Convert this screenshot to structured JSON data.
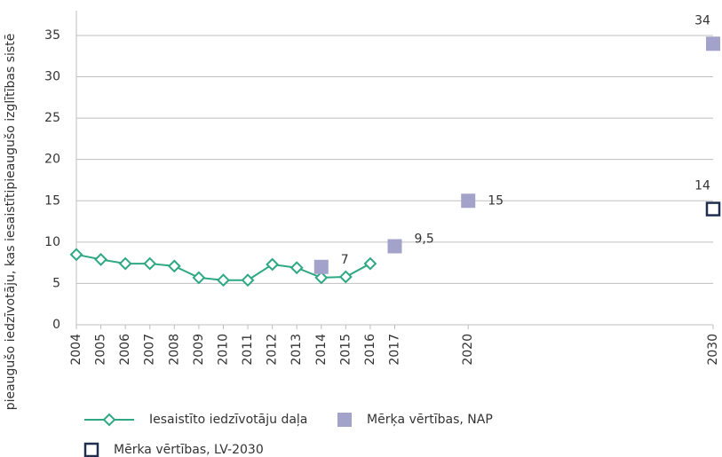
{
  "chart_data": {
    "type": "line",
    "y_label": "pieaugušo iedzīvotāju, kas iesaistītipieaugušo izglītības sistē",
    "xlim": [
      2004,
      2030
    ],
    "xticks": [
      2004,
      2005,
      2006,
      2007,
      2008,
      2009,
      2010,
      2011,
      2012,
      2013,
      2014,
      2015,
      2016,
      2017,
      2020,
      2030
    ],
    "ylim": [
      0,
      38
    ],
    "yticks": [
      0,
      5,
      10,
      15,
      20,
      25,
      30,
      35
    ],
    "grid": true,
    "legend": "bottom",
    "series": [
      {
        "name": "Iesaistīto iedzīvotāju daļa",
        "color": "#2ea884",
        "marker": "diamond",
        "x": [
          2004,
          2005,
          2006,
          2007,
          2008,
          2009,
          2010,
          2011,
          2012,
          2013,
          2014,
          2015,
          2016
        ],
        "values": [
          8.5,
          7.9,
          7.4,
          7.4,
          7.1,
          5.7,
          5.4,
          5.4,
          7.3,
          6.9,
          5.7,
          5.8,
          7.4
        ]
      },
      {
        "name": "Mērķa vērtības, NAP",
        "color": "#a3a2cb",
        "marker": "square",
        "x": [
          2014,
          2017,
          2020,
          2030
        ],
        "values": [
          7,
          9.5,
          15,
          34
        ],
        "value_labels": [
          "7",
          "9,5",
          "15",
          "34"
        ]
      },
      {
        "name": "Mērka vērtības, LV-2030",
        "color": "#1f2d4f",
        "marker": "hollow-square",
        "x": [
          2030
        ],
        "values": [
          14
        ],
        "value_labels": [
          "14"
        ]
      }
    ]
  }
}
